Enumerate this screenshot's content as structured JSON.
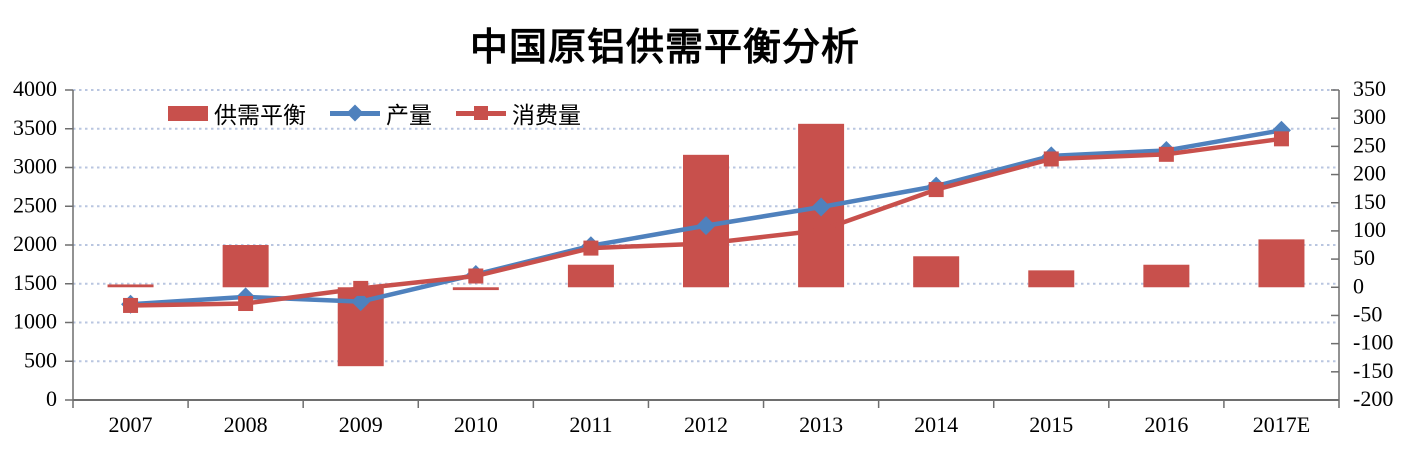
{
  "title": "中国原铝供需平衡分析",
  "colors": {
    "red": "#c8504c",
    "blue": "#4f81bd",
    "gridline": "#b9c6e0",
    "axis": "#6e6e6e",
    "text": "#000000"
  },
  "legend": [
    {
      "label": "供需平衡",
      "swatch": "red-bar"
    },
    {
      "label": "产量",
      "swatch": "blue-line-diamond"
    },
    {
      "label": "消费量",
      "swatch": "red-line-square"
    }
  ],
  "chart_data": {
    "type": "bar+line combo with dual y-axes",
    "title": "中国原铝供需平衡分析",
    "categories": [
      "2007",
      "2008",
      "2009",
      "2010",
      "2011",
      "2012",
      "2013",
      "2014",
      "2015",
      "2016",
      "2017E"
    ],
    "series": [
      {
        "name": "供需平衡",
        "type": "bar",
        "axis": "right",
        "color": "#c8504c",
        "values": [
          5,
          75,
          -140,
          -5,
          40,
          235,
          290,
          55,
          30,
          40,
          85
        ]
      },
      {
        "name": "产量",
        "type": "line",
        "marker": "diamond",
        "axis": "left",
        "color": "#4f81bd",
        "values": [
          1235,
          1330,
          1270,
          1620,
          1990,
          2250,
          2490,
          2760,
          3150,
          3220,
          3480
        ]
      },
      {
        "name": "消费量",
        "type": "line",
        "marker": "square",
        "axis": "left",
        "color": "#c8504c",
        "values": [
          1220,
          1245,
          1440,
          1600,
          1960,
          2020,
          2190,
          2715,
          3110,
          3170,
          3370
        ]
      }
    ],
    "left_axis": {
      "min": 0,
      "max": 4000,
      "step": 500,
      "ticks": [
        0,
        500,
        1000,
        1500,
        2000,
        2500,
        3000,
        3500,
        4000
      ]
    },
    "right_axis": {
      "min": -200,
      "max": 350,
      "step": 50,
      "ticks": [
        -200,
        -150,
        -100,
        -50,
        0,
        50,
        100,
        150,
        200,
        250,
        300,
        350
      ]
    },
    "grid": "horizontal dotted, aligned to left axis",
    "legend_position": "inside top-left"
  }
}
